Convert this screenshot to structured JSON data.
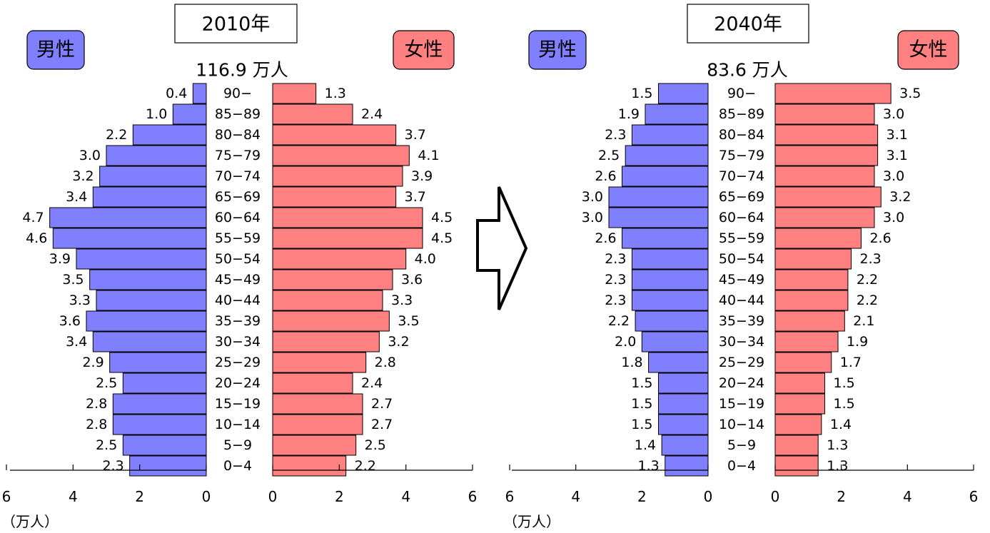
{
  "chart_data": [
    {
      "type": "bar",
      "title": "2010年",
      "total_label": "116.9 万人",
      "categories": [
        "90-",
        "85-89",
        "80-84",
        "75-79",
        "70-74",
        "65-69",
        "60-64",
        "55-59",
        "50-54",
        "45-49",
        "40-44",
        "35-39",
        "30-34",
        "25-29",
        "20-24",
        "15-19",
        "10-14",
        "5-9",
        "0-4"
      ],
      "series": [
        {
          "name": "男性",
          "color": "#8080FF",
          "values": [
            0.4,
            1.0,
            2.2,
            3.0,
            3.2,
            3.4,
            4.7,
            4.6,
            3.9,
            3.5,
            3.3,
            3.6,
            3.4,
            2.9,
            2.5,
            2.8,
            2.8,
            2.5,
            2.3
          ]
        },
        {
          "name": "女性",
          "color": "#FF8080",
          "values": [
            1.3,
            2.4,
            3.7,
            4.1,
            3.9,
            3.7,
            4.5,
            4.5,
            4.0,
            3.6,
            3.3,
            3.5,
            3.2,
            2.8,
            2.4,
            2.7,
            2.7,
            2.5,
            2.2
          ]
        }
      ],
      "xlim": [
        0,
        6
      ],
      "ticks": [
        0,
        2,
        4,
        6
      ],
      "unit_label": "（万人）"
    },
    {
      "type": "bar",
      "title": "2040年",
      "total_label": "83.6 万人",
      "categories": [
        "90-",
        "85-89",
        "80-84",
        "75-79",
        "70-74",
        "65-69",
        "60-64",
        "55-59",
        "50-54",
        "45-49",
        "40-44",
        "35-39",
        "30-34",
        "25-29",
        "20-24",
        "15-19",
        "10-14",
        "5-9",
        "0-4"
      ],
      "series": [
        {
          "name": "男性",
          "color": "#8080FF",
          "values": [
            1.5,
            1.9,
            2.3,
            2.5,
            2.6,
            3.0,
            3.0,
            2.6,
            2.3,
            2.3,
            2.3,
            2.2,
            2.0,
            1.8,
            1.5,
            1.5,
            1.5,
            1.4,
            1.3
          ]
        },
        {
          "name": "女性",
          "color": "#FF8080",
          "values": [
            3.5,
            3.0,
            3.1,
            3.1,
            3.0,
            3.2,
            3.0,
            2.6,
            2.3,
            2.2,
            2.2,
            2.1,
            1.9,
            1.7,
            1.5,
            1.5,
            1.4,
            1.3,
            1.3
          ]
        }
      ],
      "xlim": [
        0,
        6
      ],
      "ticks": [
        0,
        2,
        4,
        6
      ],
      "unit_label": "（万人）"
    }
  ]
}
